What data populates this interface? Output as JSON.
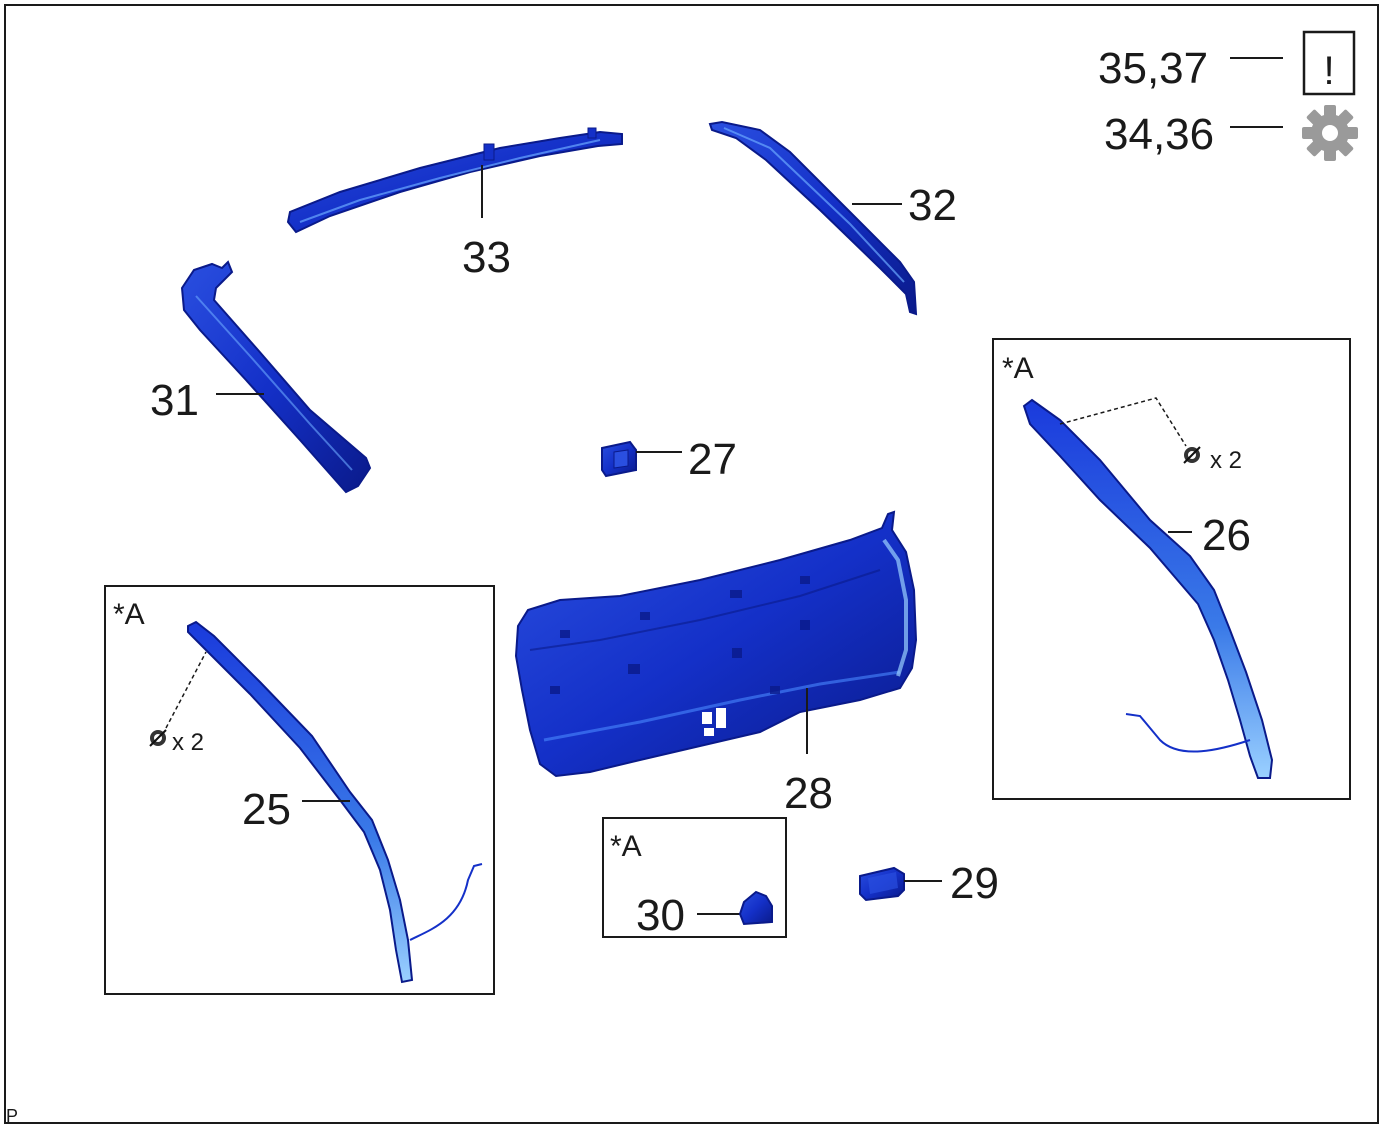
{
  "diagram": {
    "border_color": "#1a1a1a",
    "part_color": "#1430c8",
    "part_dark_color": "#0a1a8a",
    "part_light_color": "#6aa8ff",
    "icon_color": "#9a9a9a",
    "corner_mark": "P"
  },
  "legend": [
    {
      "label": "35,37",
      "icon": "caution-icon",
      "glyph": "!"
    },
    {
      "label": "34,36",
      "icon": "gear-icon"
    }
  ],
  "parts": {
    "p25": "25",
    "p26": "26",
    "p27": "27",
    "p28": "28",
    "p29": "29",
    "p30": "30",
    "p31": "31",
    "p32": "32",
    "p33": "33"
  },
  "insets": {
    "marker": "*A",
    "clip_qty_text": "x 2"
  }
}
